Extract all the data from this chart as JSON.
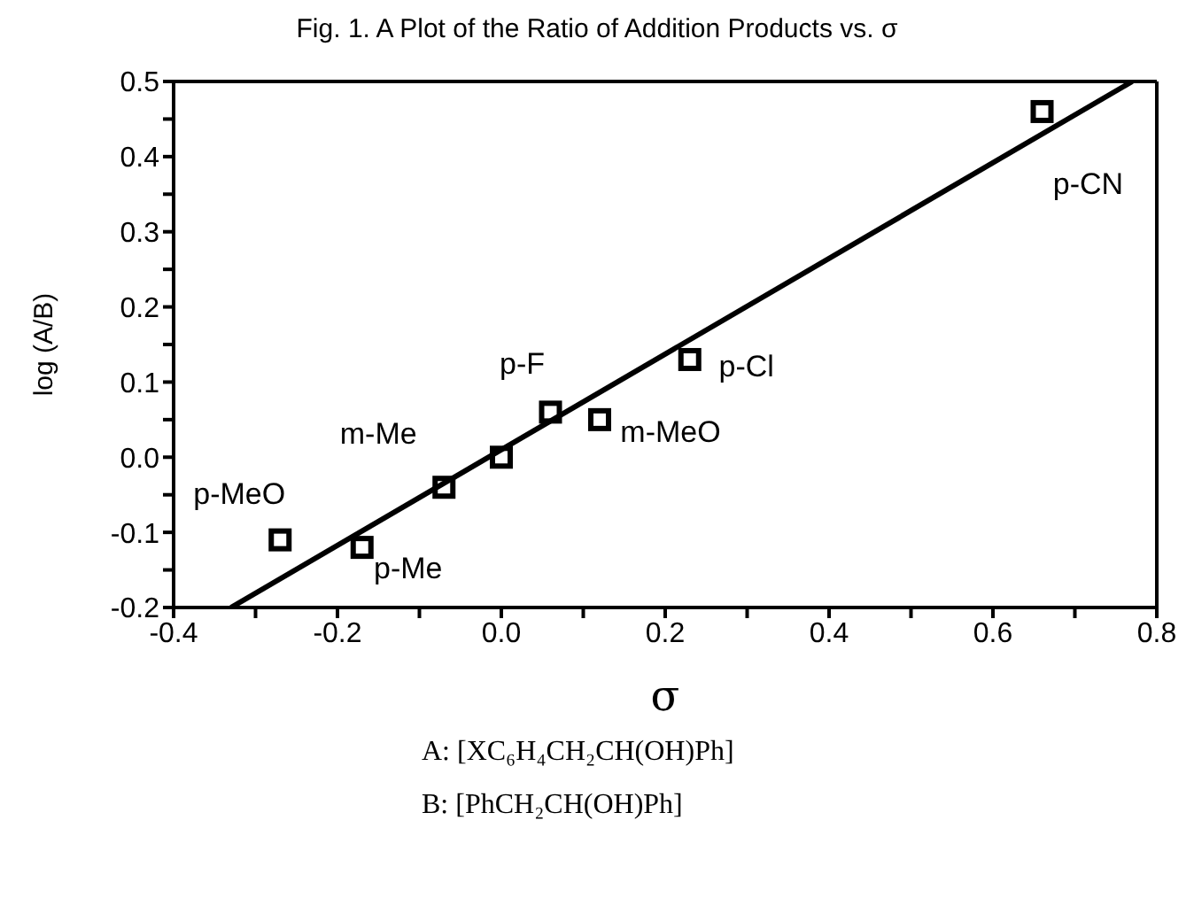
{
  "chart_data": {
    "type": "scatter",
    "title": "Fig. 1. A Plot of the Ratio of Addition Products vs. σ",
    "xlabel": "σ",
    "ylabel": "log (A/B)",
    "xlim": [
      -0.4,
      0.8
    ],
    "xticks": [
      -0.4,
      {
        "value": -0.3,
        "label": null
      },
      -0.2,
      {
        "value": -0.1,
        "label": null
      },
      {
        "value": 0,
        "label": "0.0"
      },
      {
        "value": 0.1,
        "label": null
      },
      0.2,
      {
        "value": 0.3,
        "label": null
      },
      0.4,
      {
        "value": 0.5,
        "label": null
      },
      0.6,
      {
        "value": 0.7,
        "label": null
      },
      0.8
    ],
    "ylim": [
      -0.2,
      0.5
    ],
    "yticks": [
      -0.2,
      {
        "value": -0.15,
        "label": null
      },
      -0.1,
      {
        "value": -0.05,
        "label": null
      },
      {
        "value": 0,
        "label": "0.0"
      },
      {
        "value": 0.05,
        "label": null
      },
      0.1,
      {
        "value": 0.15,
        "label": null
      },
      0.2,
      {
        "value": 0.25,
        "label": null
      },
      0.3,
      {
        "value": 0.35,
        "label": null
      },
      0.4,
      {
        "value": 0.45,
        "label": null
      },
      0.5
    ],
    "grid": false,
    "legend": false,
    "marker": "square",
    "series": [
      {
        "color": "#000000",
        "x": [
          -0.27,
          -0.17,
          -0.07,
          0.0,
          0.06,
          0.12,
          0.23,
          0.66
        ],
        "values": [
          -0.11,
          -0.12,
          -0.04,
          0.0,
          0.06,
          0.05,
          0.13,
          0.46
        ]
      },
      {
        "type": "line",
        "color": "#000000",
        "line_style": "solid",
        "marker": "none",
        "x": [
          -0.33,
          0.77
        ],
        "values": [
          -0.2,
          0.5
        ]
      }
    ],
    "annotations": [
      {
        "text": "p-MeO",
        "x": -0.27,
        "y": -0.11
      },
      {
        "text": "p-Me",
        "x": -0.17,
        "y": -0.12
      },
      {
        "text": "m-Me",
        "x": -0.07,
        "y": -0.04
      },
      {
        "text": "p-F",
        "x": 0.06,
        "y": 0.06
      },
      {
        "text": "m-MeO",
        "x": 0.12,
        "y": 0.05
      },
      {
        "text": "p-Cl",
        "x": 0.23,
        "y": 0.13
      },
      {
        "text": "p-CN",
        "x": 0.66,
        "y": 0.46
      },
      "A: [XC₆H₄CH₂CH(OH)Ph]",
      "B: [PhCH₂CH(OH)Ph]"
    ]
  }
}
